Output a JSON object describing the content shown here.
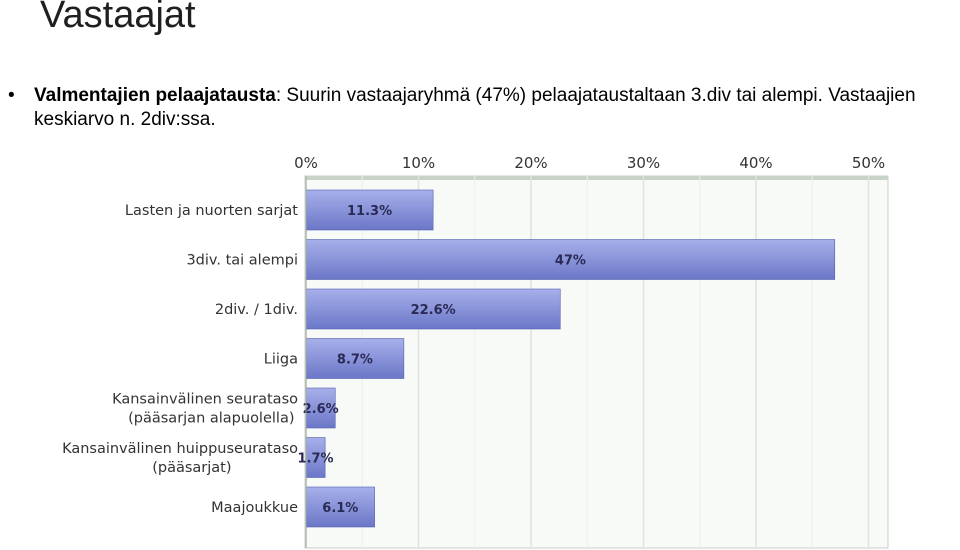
{
  "slide": {
    "title": "Vastaajat",
    "bullet_symbol": "•",
    "bullet_bold": "Valmentajien pelaajatausta",
    "bullet_text": ": Suurin vastaajaryhmä (47%) pelaajataustaltaan 3.div tai alempi. Vastaajien keskiarvo n. 2div:ssa."
  },
  "chart_data": {
    "type": "bar",
    "orientation": "horizontal",
    "categories": [
      [
        "Lasten ja nuorten sarjat"
      ],
      [
        "3div. tai alempi"
      ],
      [
        "2div. / 1div."
      ],
      [
        "Liiga"
      ],
      [
        "Kansainvälinen seurataso",
        "(pääsarjan alapuolella)"
      ],
      [
        "Kansainvälinen huippuseurataso",
        "(pääsarjat)"
      ],
      [
        "Maajoukkue"
      ]
    ],
    "values": [
      11.3,
      47,
      22.6,
      8.7,
      2.6,
      1.7,
      6.1
    ],
    "value_labels": [
      "11.3%",
      "47%",
      "22.6%",
      "8.7%",
      "2.6%",
      "1.7%",
      "6.1%"
    ],
    "x_ticks": [
      0,
      10,
      20,
      30,
      40,
      50
    ],
    "x_tick_labels": [
      "0%",
      "10%",
      "20%",
      "30%",
      "40%",
      "50%"
    ],
    "xlim": [
      0,
      52
    ],
    "axis_position": "top",
    "grid": true,
    "colors": {
      "bar_top": "#a7b0ea",
      "bar_bottom": "#6b77c8",
      "bar_stroke": "#5560b0",
      "grid": "#dfe3df",
      "plot_bg": "#f7faf7"
    }
  }
}
